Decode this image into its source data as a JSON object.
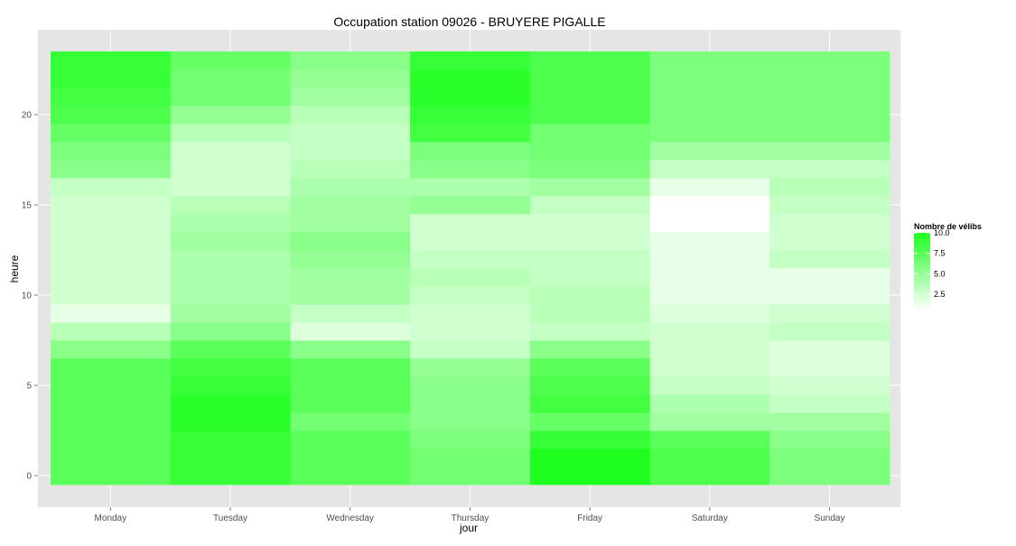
{
  "chart_data": {
    "type": "heatmap",
    "title": "Occupation station 09026 - BRUYERE PIGALLE",
    "xlabel": "jour",
    "ylabel": "heure",
    "categories": [
      "Monday",
      "Tuesday",
      "Wednesday",
      "Thursday",
      "Friday",
      "Saturday",
      "Sunday"
    ],
    "y_ticks": [
      0,
      5,
      10,
      15,
      20
    ],
    "y_range": [
      -0.5,
      23.5
    ],
    "hours": [
      0,
      1,
      2,
      3,
      4,
      5,
      6,
      7,
      8,
      9,
      10,
      11,
      12,
      13,
      14,
      15,
      16,
      17,
      18,
      19,
      20,
      21,
      22,
      23
    ],
    "values": [
      [
        7.5,
        7.5,
        7.5,
        7.5,
        7.5,
        7.5,
        7.5,
        5.5,
        3.5,
        1.5,
        2.5,
        2.5,
        2.5,
        2.5,
        2.5,
        2.5,
        3.0,
        5.5,
        6.0,
        7.0,
        8.0,
        8.5,
        9.0,
        9.0
      ],
      [
        9.0,
        9.0,
        9.0,
        9.5,
        9.5,
        9.0,
        8.5,
        7.5,
        5.5,
        4.5,
        4.0,
        4.0,
        4.0,
        4.5,
        4.0,
        3.5,
        2.5,
        2.5,
        2.5,
        3.5,
        5.0,
        6.5,
        6.5,
        7.0
      ],
      [
        7.5,
        7.5,
        7.5,
        6.5,
        7.5,
        7.5,
        7.5,
        5.5,
        2.0,
        3.0,
        4.5,
        4.5,
        5.0,
        5.5,
        4.5,
        4.5,
        4.0,
        3.5,
        3.0,
        3.0,
        3.5,
        4.5,
        5.0,
        5.5
      ],
      [
        6.5,
        6.5,
        6.0,
        5.5,
        5.5,
        5.5,
        5.0,
        3.0,
        2.5,
        2.5,
        3.0,
        3.5,
        3.0,
        2.5,
        2.5,
        5.0,
        4.0,
        5.5,
        6.0,
        8.5,
        9.0,
        9.5,
        9.5,
        9.0
      ],
      [
        10.0,
        10.0,
        9.0,
        7.0,
        8.5,
        8.0,
        7.5,
        5.5,
        3.0,
        3.5,
        3.5,
        3.0,
        3.0,
        2.5,
        2.5,
        3.0,
        4.5,
        6.0,
        6.5,
        6.5,
        8.0,
        8.0,
        8.0,
        8.0
      ],
      [
        8.0,
        8.0,
        7.5,
        4.5,
        4.0,
        3.0,
        2.5,
        2.5,
        2.5,
        2.0,
        1.5,
        1.5,
        1.5,
        1.5,
        0.5,
        0.5,
        1.5,
        3.0,
        4.5,
        6.0,
        6.0,
        6.0,
        6.0,
        6.0
      ],
      [
        6.0,
        6.0,
        5.5,
        4.5,
        3.0,
        2.5,
        2.0,
        2.0,
        3.0,
        2.5,
        1.5,
        1.5,
        3.0,
        2.5,
        2.5,
        3.0,
        3.5,
        3.0,
        4.5,
        6.0,
        6.0,
        6.0,
        6.0,
        6.0
      ]
    ],
    "legend": {
      "title": "Nombre de vélibs",
      "placement": "right",
      "ticks": [
        10.0,
        7.5,
        5.0,
        2.5
      ],
      "tick_labels": [
        "10.0",
        "7.5",
        "5.0",
        "2.5"
      ],
      "range": [
        0.5,
        10.0
      ]
    },
    "colors": {
      "low": "#ffffff",
      "high": "#1fff1f",
      "panel": "#e5e5e5",
      "grid": "#ffffff",
      "tick_text": "#4d4d4d"
    }
  }
}
